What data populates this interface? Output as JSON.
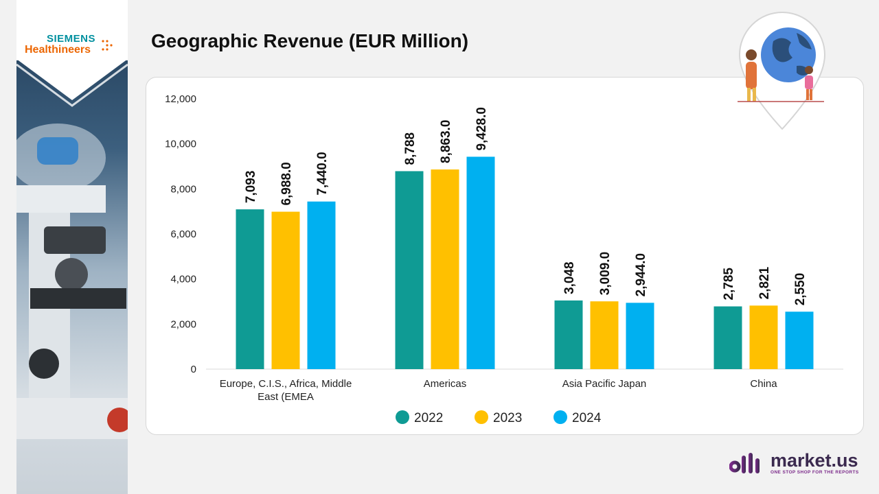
{
  "logo": {
    "line1": "SIEMENS",
    "line2": "Healthineers"
  },
  "page_title": "Geographic Revenue (EUR Million)",
  "brand": {
    "name": "market.us",
    "tagline": "ONE STOP SHOP FOR THE REPORTS"
  },
  "colors": {
    "s2022": "#0f9b94",
    "s2023": "#ffc000",
    "s2024": "#00b0f0",
    "grid": "#e6e6e6"
  },
  "chart_data": {
    "type": "bar",
    "title": "Geographic Revenue (EUR Million)",
    "categories": [
      [
        "Europe, C.I.S., Africa, Middle",
        "East (EMEA"
      ],
      [
        "Americas"
      ],
      [
        "Asia Pacific Japan"
      ],
      [
        "China"
      ]
    ],
    "series": [
      {
        "name": "2022",
        "values": [
          7093,
          8788,
          3048,
          2785
        ],
        "labels": [
          "7,093",
          "8,788",
          "3,048",
          "2,785"
        ]
      },
      {
        "name": "2023",
        "values": [
          6988.0,
          8863.0,
          3009.0,
          2821
        ],
        "labels": [
          "6,988.0",
          "8,863.0",
          "3,009.0",
          "2,821"
        ]
      },
      {
        "name": "2024",
        "values": [
          7440.0,
          9428.0,
          2944.0,
          2550
        ],
        "labels": [
          "7,440.0",
          "9,428.0",
          "2,944.0",
          "2,550"
        ]
      }
    ],
    "yticks": [
      "0",
      "2,000",
      "4,000",
      "6,000",
      "8,000",
      "10,000",
      "12,000"
    ],
    "ylim": [
      0,
      12000
    ],
    "grid": false,
    "legend": "bottom-center"
  }
}
